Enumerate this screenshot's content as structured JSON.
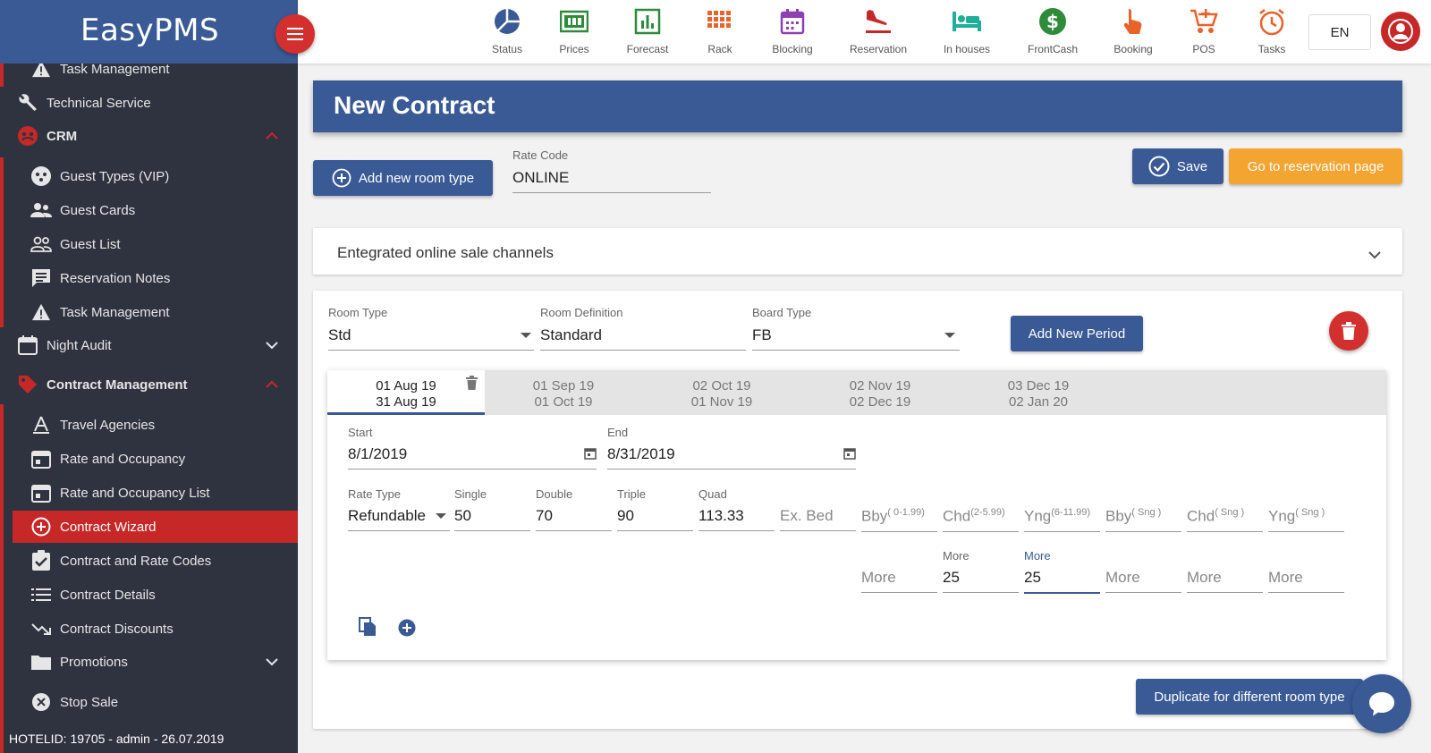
{
  "app": {
    "name": "EasyPMS"
  },
  "sidebar": {
    "items": [
      {
        "label": "Task Management",
        "icon": "warning-icon"
      },
      {
        "label": "Technical Service",
        "icon": "wrench-icon"
      },
      {
        "label": "CRM",
        "icon": "crm-icon"
      },
      {
        "label": "Guest Types (VIP)",
        "icon": "vip-icon"
      },
      {
        "label": "Guest Cards",
        "icon": "people-icon"
      },
      {
        "label": "Guest List",
        "icon": "people-outline-icon"
      },
      {
        "label": "Reservation Notes",
        "icon": "notes-icon"
      },
      {
        "label": "Task Management",
        "icon": "warning-icon"
      },
      {
        "label": "Night Audit",
        "icon": "calendar-icon"
      },
      {
        "label": "Contract Management",
        "icon": "tag-icon"
      },
      {
        "label": "Travel Agencies",
        "icon": "agency-icon"
      },
      {
        "label": "Rate and Occupancy",
        "icon": "calendar-icon"
      },
      {
        "label": "Rate and Occupancy List",
        "icon": "calendar-icon"
      },
      {
        "label": "Contract Wizard",
        "icon": "plus-circle-icon"
      },
      {
        "label": "Contract and Rate Codes",
        "icon": "clipboard-check-icon"
      },
      {
        "label": "Contract Details",
        "icon": "list-icon"
      },
      {
        "label": "Contract Discounts",
        "icon": "trending-down-icon"
      },
      {
        "label": "Promotions",
        "icon": "folder-icon"
      },
      {
        "label": "Stop Sale",
        "icon": "close-circle-icon"
      }
    ],
    "footer": "HOTELID: 19705 - admin - 26.07.2019"
  },
  "topbar": {
    "tools": [
      {
        "label": "Status",
        "icon": "pie-icon",
        "color": "#3a5a96"
      },
      {
        "label": "Prices",
        "icon": "prices-icon",
        "color": "#2e8b3a"
      },
      {
        "label": "Forecast",
        "icon": "forecast-icon",
        "color": "#2e8b3a"
      },
      {
        "label": "Rack",
        "icon": "rack-icon",
        "color": "#e8622a"
      },
      {
        "label": "Blocking",
        "icon": "blocking-icon",
        "color": "#8e3fb0"
      },
      {
        "label": "Reservation",
        "icon": "plane-landing-icon",
        "color": "#c62828"
      },
      {
        "label": "In houses",
        "icon": "bed-icon",
        "color": "#1fae9a"
      },
      {
        "label": "FrontCash",
        "icon": "dollar-icon",
        "color": "#2e8b3a"
      },
      {
        "label": "Booking",
        "icon": "hand-pointer-icon",
        "color": "#e8622a"
      },
      {
        "label": "POS",
        "icon": "cart-icon",
        "color": "#e8622a"
      },
      {
        "label": "Tasks",
        "icon": "alarm-icon",
        "color": "#e8622a"
      }
    ],
    "language": "EN"
  },
  "page": {
    "title": "New Contract",
    "add_room_type": "Add new room type",
    "rate_code_label": "Rate Code",
    "rate_code_value": "ONLINE",
    "save": "Save",
    "go_reservation": "Go to reservation page",
    "channels": "Entegrated online sale channels"
  },
  "room": {
    "room_type_label": "Room Type",
    "room_type_value": "Std",
    "room_def_label": "Room Definition",
    "room_def_value": "Standard",
    "board_label": "Board Type",
    "board_value": "FB",
    "add_period": "Add New Period"
  },
  "periods": [
    {
      "from": "01 Aug 19",
      "to": "31 Aug 19"
    },
    {
      "from": "01 Sep 19",
      "to": "01 Oct 19"
    },
    {
      "from": "02 Oct 19",
      "to": "01 Nov 19"
    },
    {
      "from": "02 Nov 19",
      "to": "02 Dec 19"
    },
    {
      "from": "03 Dec 19",
      "to": "02 Jan 20"
    }
  ],
  "period_detail": {
    "start_label": "Start",
    "start_value": "8/1/2019",
    "end_label": "End",
    "end_value": "8/31/2019",
    "rate_type_label": "Rate Type",
    "rate_type_value": "Refundable",
    "single_label": "Single",
    "single_value": "50",
    "double_label": "Double",
    "double_value": "70",
    "triple_label": "Triple",
    "triple_value": "90",
    "quad_label": "Quad",
    "quad_value": "113.33",
    "exbed_placeholder": "Ex. Bed",
    "bby_label": "Bby",
    "bby_range": "( 0-1.99)",
    "chd_label": "Chd",
    "chd_range": "(2-5.99)",
    "yng_label": "Yng",
    "yng_range": "(6-11.99)",
    "bby_sng_label": "Bby",
    "bby_sng_range": "( Sng )",
    "chd_sng_label": "Chd",
    "chd_sng_range": "( Sng )",
    "yng_sng_label": "Yng",
    "yng_sng_range": "( Sng )",
    "more_placeholder": "More",
    "more_label": "More",
    "more_chd_value": "25",
    "more_yng_value": "25"
  },
  "duplicate": "Duplicate for different room type"
}
